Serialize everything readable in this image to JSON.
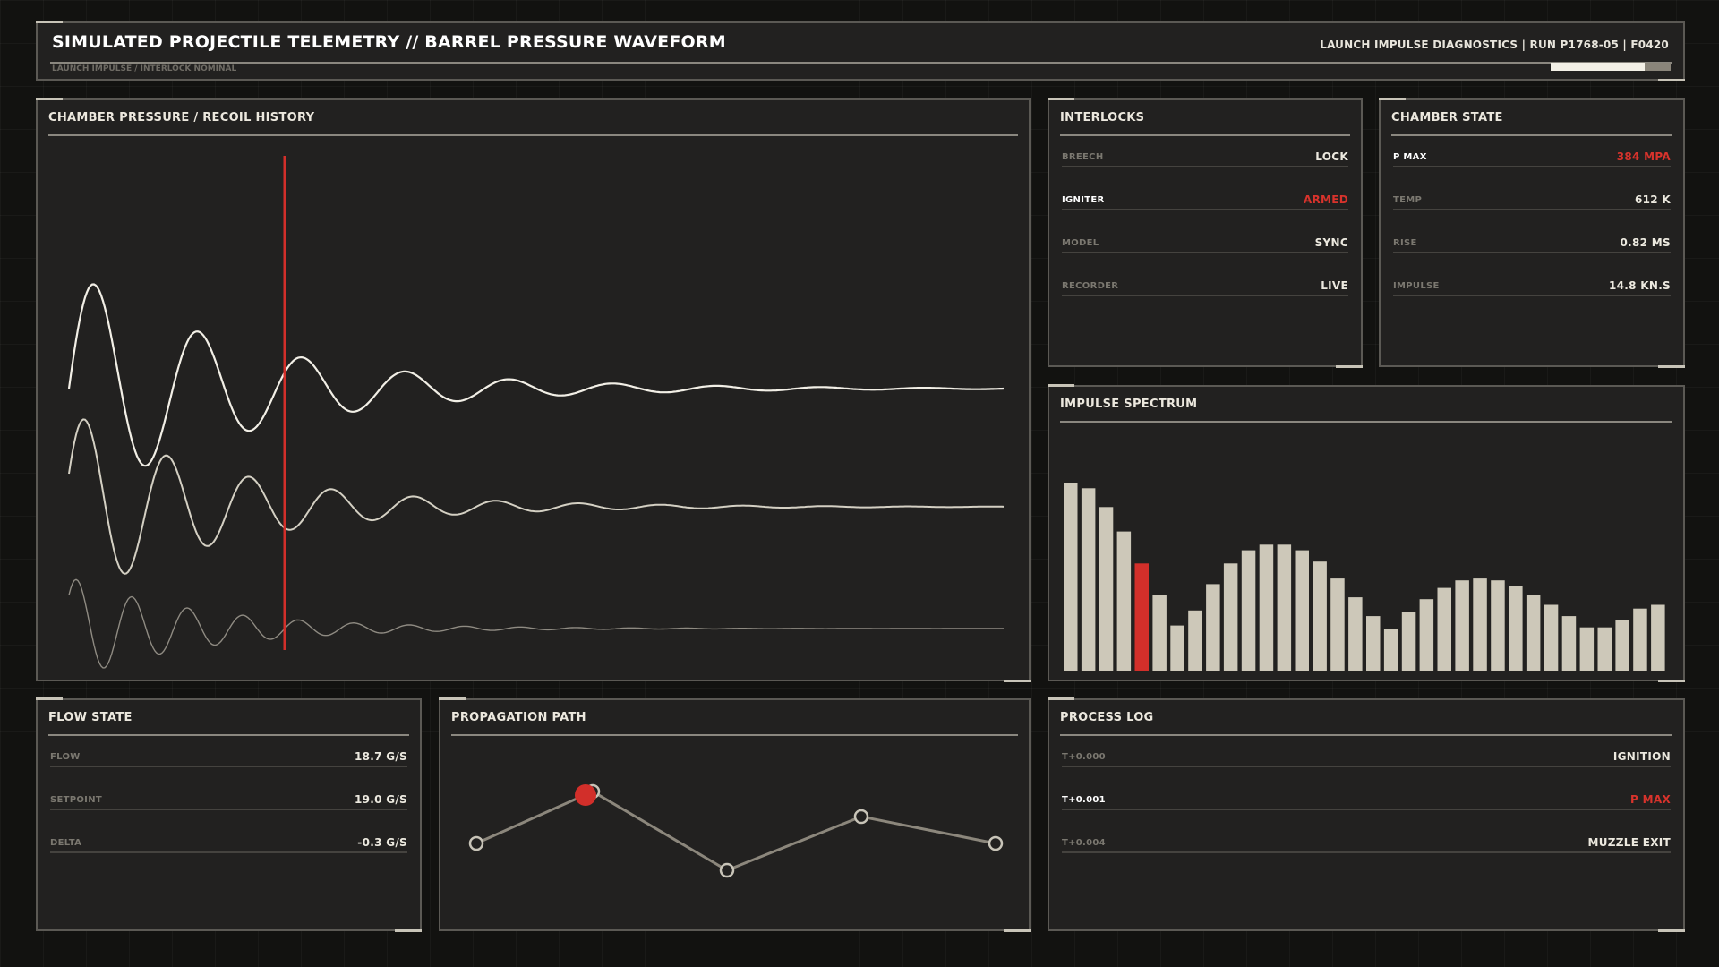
{
  "header": {
    "title": "SIMULATED PROJECTILE TELEMETRY // BARREL PRESSURE WAVEFORM",
    "subtitle": "LAUNCH IMPULSE / INTERLOCK NOMINAL",
    "right_label": "LAUNCH IMPULSE DIAGNOSTICS",
    "run": "RUN P1768-05",
    "frame": "F0420",
    "progress": 0.78
  },
  "waveform": {
    "title": "CHAMBER PRESSURE / RECOIL HISTORY",
    "cursor_color": "#d22f2a",
    "series_colors": [
      "#f2efe6",
      "#d4d0c3",
      "#8f8b82"
    ]
  },
  "interlocks": {
    "title": "INTERLOCKS",
    "rows": [
      {
        "label": "BREECH",
        "value": "LOCK",
        "highlight": false
      },
      {
        "label": "IGNITER",
        "value": "ARMED",
        "highlight": true
      },
      {
        "label": "MODEL",
        "value": "SYNC",
        "highlight": false
      },
      {
        "label": "RECORDER",
        "value": "LIVE",
        "highlight": false
      }
    ]
  },
  "chamber_state": {
    "title": "CHAMBER STATE",
    "rows": [
      {
        "label": "P MAX",
        "value": "384 MPA",
        "highlight": true
      },
      {
        "label": "TEMP",
        "value": "612 K",
        "highlight": false
      },
      {
        "label": "RISE",
        "value": "0.82 MS",
        "highlight": false
      },
      {
        "label": "IMPULSE",
        "value": "14.8 KN.S",
        "highlight": false
      }
    ]
  },
  "spectrum": {
    "title": "IMPULSE SPECTRUM",
    "values": [
      1.0,
      0.97,
      0.87,
      0.74,
      0.57,
      0.4,
      0.24,
      0.32,
      0.46,
      0.57,
      0.64,
      0.67,
      0.67,
      0.64,
      0.58,
      0.49,
      0.39,
      0.29,
      0.22,
      0.31,
      0.38,
      0.44,
      0.48,
      0.49,
      0.48,
      0.45,
      0.4,
      0.35,
      0.29,
      0.23,
      0.23,
      0.27,
      0.33,
      0.35
    ],
    "highlight_index": 4,
    "bar_color": "#cdc8b9",
    "highlight_color": "#d22f2a"
  },
  "flow_state": {
    "title": "FLOW STATE",
    "rows": [
      {
        "label": "FLOW",
        "value": "18.7 G/S",
        "highlight": false
      },
      {
        "label": "SETPOINT",
        "value": "19.0 G/S",
        "highlight": false
      },
      {
        "label": "DELTA",
        "value": "-0.3 G/S",
        "highlight": false
      }
    ]
  },
  "propagation": {
    "title": "PROPAGATION PATH",
    "active_color": "#d22f2a"
  },
  "process_log": {
    "title": "PROCESS LOG",
    "rows": [
      {
        "label": "T+0.000",
        "value": "IGNITION",
        "highlight": false
      },
      {
        "label": "T+0.001",
        "value": "P MAX",
        "highlight": true
      },
      {
        "label": "T+0.004",
        "value": "MUZZLE EXIT",
        "highlight": false
      }
    ]
  }
}
